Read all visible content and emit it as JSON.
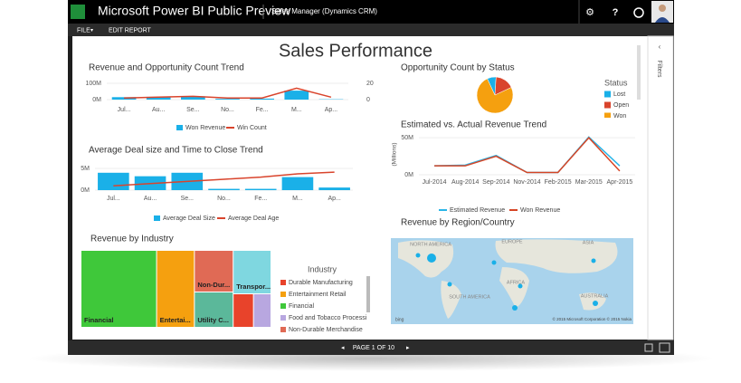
{
  "app": {
    "title": "Microsoft Power BI Public Preview",
    "workspace": "Sales Manager (Dynamics CRM)",
    "menu": [
      "FILE",
      "EDIT REPORT"
    ],
    "pager": "PAGE 1 OF 10",
    "filters": "Filters"
  },
  "report_title": "Sales Performance",
  "chart_data": [
    {
      "type": "combo",
      "title": "Revenue and Opportunity Count Trend",
      "categories": [
        "Jul...",
        "Au...",
        "Se...",
        "No...",
        "Fe...",
        "M...",
        "Ap..."
      ],
      "series": [
        {
          "name": "Won Revenue",
          "type": "bar",
          "color": "#1ab0e8",
          "values": [
            15,
            17,
            20,
            5,
            6,
            55,
            2
          ]
        },
        {
          "name": "Win Count",
          "type": "line",
          "axis": "y2",
          "color": "#d9442c",
          "values": [
            2,
            3,
            4,
            2,
            2,
            14,
            3
          ]
        }
      ],
      "ylim": [
        0,
        100
      ],
      "yticks": [
        {
          "value": 0,
          "label": "0M"
        },
        {
          "value": 100,
          "label": "100M"
        }
      ],
      "y2lim": [
        0,
        20
      ],
      "y2ticks": [
        0,
        20
      ]
    },
    {
      "type": "combo",
      "title": "Average Deal size and Time to Close Trend",
      "categories": [
        "Jul...",
        "Au...",
        "Se...",
        "No...",
        "Fe...",
        "M...",
        "Ap..."
      ],
      "series": [
        {
          "name": "Average Deal Size",
          "type": "bar",
          "color": "#1ab0e8",
          "values": [
            4,
            3.2,
            4,
            0.3,
            0.3,
            3,
            0.6
          ]
        },
        {
          "name": "Average Deal Age",
          "type": "line",
          "axis": "y2",
          "color": "#d9442c",
          "values": [
            20,
            30,
            40,
            50,
            60,
            75,
            83
          ]
        }
      ],
      "ylim": [
        0,
        5
      ],
      "yticks": [
        {
          "value": 0,
          "label": "0M"
        },
        {
          "value": 5,
          "label": "5M"
        }
      ],
      "y2lim": [
        0,
        100
      ]
    },
    {
      "type": "pie",
      "title": "Opportunity Count by Status",
      "legend_title": "Status",
      "categories": [
        "Lost",
        "Open",
        "Won"
      ],
      "values": [
        8,
        17,
        75
      ],
      "colors": [
        "#1ab0e8",
        "#d9442c",
        "#f5a00f"
      ]
    },
    {
      "type": "line",
      "title": "Estimated vs. Actual Revenue Trend",
      "y_label": "(Millions)",
      "categories": [
        "Jul-2014",
        "Aug-2014",
        "Sep-2014",
        "Nov-2014",
        "Feb-2015",
        "Mar-2015",
        "Apr-2015"
      ],
      "series": [
        {
          "name": "Estimated Revenue",
          "color": "#29b5e8",
          "values": [
            12,
            13,
            26,
            3,
            3,
            51,
            12
          ]
        },
        {
          "name": "Won Revenue",
          "color": "#d64525",
          "values": [
            12,
            12,
            25,
            3,
            3,
            50,
            5
          ]
        }
      ],
      "ylim": [
        0,
        55
      ],
      "yticks": [
        {
          "value": 0,
          "label": "0M"
        },
        {
          "value": 50,
          "label": "50M"
        }
      ]
    },
    {
      "type": "map",
      "title": "Revenue by Region/Country",
      "regions": [
        "NORTH AMERICA",
        "EUROPE",
        "ASIA",
        "SOUTH AMERICA",
        "AFRICA",
        "AUSTRALIA"
      ],
      "attribution": "© 2015 Microsoft Corporation  © 2015 Nokia",
      "provider": "bing"
    },
    {
      "type": "treemap",
      "title": "Revenue by Industry",
      "legend_title": "Industry",
      "categories": [
        "Durable Manufacturing",
        "Entertainment Retail",
        "Financial",
        "Food and Tobacco Processi",
        "Non-Durable Merchandise",
        "Transpor...",
        "Utility C..."
      ],
      "tile_labels": [
        null,
        "Entertai...",
        "Financial",
        null,
        "Non-Dur...",
        "Transpor...",
        "Utility C..."
      ],
      "values": [
        814,
        3485,
        6970,
        703,
        1935,
        1968,
        1640
      ],
      "colors": [
        "#e8432b",
        "#f5a00f",
        "#3fc83a",
        "#b8a7e0",
        "#e06a55",
        "#7fd7e0",
        "#5bb89a"
      ]
    }
  ]
}
